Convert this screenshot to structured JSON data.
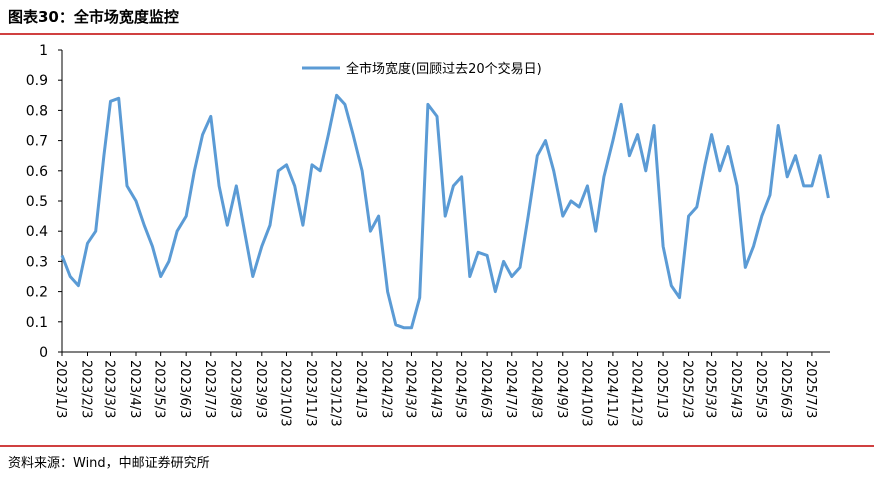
{
  "chart_data": {
    "type": "line",
    "title": "图表30：全市场宽度监控",
    "source": "资料来源：Wind，中邮证券研究所",
    "x": [
      "2023/1/3",
      "2023/1/13",
      "2023/1/23",
      "2023/2/3",
      "2023/2/13",
      "2023/2/23",
      "2023/3/3",
      "2023/3/13",
      "2023/3/23",
      "2023/4/3",
      "2023/4/13",
      "2023/4/23",
      "2023/5/3",
      "2023/5/13",
      "2023/5/23",
      "2023/6/3",
      "2023/6/13",
      "2023/6/23",
      "2023/7/3",
      "2023/7/13",
      "2023/7/23",
      "2023/8/3",
      "2023/8/13",
      "2023/8/23",
      "2023/9/3",
      "2023/9/13",
      "2023/9/23",
      "2023/10/3",
      "2023/10/13",
      "2023/10/23",
      "2023/11/3",
      "2023/11/13",
      "2023/11/23",
      "2023/12/3",
      "2023/12/13",
      "2023/12/23",
      "2024/1/3",
      "2024/1/13",
      "2024/1/23",
      "2024/2/3",
      "2024/2/13",
      "2024/2/23",
      "2024/3/3",
      "2024/3/13",
      "2024/3/23",
      "2024/4/3",
      "2024/4/13",
      "2024/4/23",
      "2024/5/3",
      "2024/5/13",
      "2024/5/23",
      "2024/6/3",
      "2024/6/13",
      "2024/6/23",
      "2024/7/3",
      "2024/7/13",
      "2024/7/23",
      "2024/8/3",
      "2024/8/13",
      "2024/8/23",
      "2024/9/3",
      "2024/9/13",
      "2024/9/23",
      "2024/10/3",
      "2024/10/13",
      "2024/10/23",
      "2024/11/3",
      "2024/11/13",
      "2024/11/23",
      "2024/12/3",
      "2024/12/13",
      "2024/12/23",
      "2025/1/3",
      "2025/1/13",
      "2025/1/23",
      "2025/2/3",
      "2025/2/13",
      "2025/2/23",
      "2025/3/3",
      "2025/3/13",
      "2025/3/23",
      "2025/4/3",
      "2025/4/13",
      "2025/4/23",
      "2025/5/3",
      "2025/5/13",
      "2025/5/23",
      "2025/6/3",
      "2025/6/13",
      "2025/6/23",
      "2025/7/3",
      "2025/7/13",
      "2025/7/23"
    ],
    "series": [
      {
        "name": "全市场宽度(回顾过去20个交易日)",
        "color": "#5b9bd5",
        "values": [
          0.32,
          0.25,
          0.22,
          0.36,
          0.4,
          0.65,
          0.83,
          0.84,
          0.55,
          0.5,
          0.42,
          0.35,
          0.25,
          0.3,
          0.4,
          0.45,
          0.6,
          0.72,
          0.78,
          0.55,
          0.42,
          0.55,
          0.4,
          0.25,
          0.35,
          0.42,
          0.6,
          0.62,
          0.55,
          0.42,
          0.62,
          0.6,
          0.72,
          0.85,
          0.82,
          0.72,
          0.6,
          0.4,
          0.45,
          0.2,
          0.09,
          0.08,
          0.08,
          0.18,
          0.82,
          0.78,
          0.45,
          0.55,
          0.58,
          0.25,
          0.33,
          0.32,
          0.2,
          0.3,
          0.25,
          0.28,
          0.45,
          0.65,
          0.7,
          0.6,
          0.45,
          0.5,
          0.48,
          0.55,
          0.4,
          0.58,
          0.7,
          0.82,
          0.65,
          0.72,
          0.6,
          0.75,
          0.35,
          0.22,
          0.18,
          0.45,
          0.48,
          0.62,
          0.72,
          0.6,
          0.68,
          0.55,
          0.28,
          0.35,
          0.45,
          0.52,
          0.75,
          0.58,
          0.65,
          0.55,
          0.55,
          0.65,
          0.51
        ]
      }
    ],
    "xlim": [
      "2023/1/3",
      "2025/7/25"
    ],
    "xticks": [
      "2023/1/3",
      "2023/2/3",
      "2023/3/3",
      "2023/4/3",
      "2023/5/3",
      "2023/6/3",
      "2023/7/3",
      "2023/8/3",
      "2023/9/3",
      "2023/10/3",
      "2023/11/3",
      "2023/12/3",
      "2024/1/3",
      "2024/2/3",
      "2024/3/3",
      "2024/4/3",
      "2024/5/3",
      "2024/6/3",
      "2024/7/3",
      "2024/8/3",
      "2024/9/3",
      "2024/10/3",
      "2024/11/3",
      "2024/12/3",
      "2025/1/3",
      "2025/2/3",
      "2025/3/3",
      "2025/4/3",
      "2025/5/3",
      "2025/6/3",
      "2025/7/3"
    ],
    "ylim": [
      0,
      1
    ],
    "yticks": [
      0,
      0.1,
      0.2,
      0.3,
      0.4,
      0.5,
      0.6,
      0.7,
      0.8,
      0.9,
      1
    ],
    "legend": "top"
  }
}
